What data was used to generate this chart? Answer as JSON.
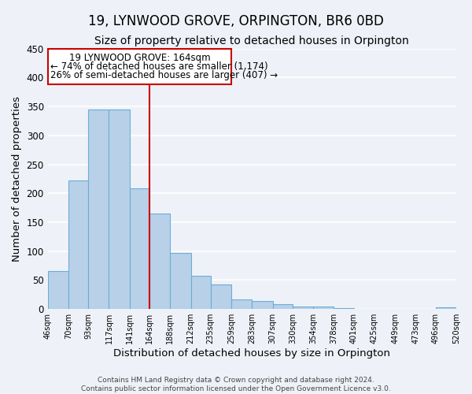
{
  "title": "19, LYNWOOD GROVE, ORPINGTON, BR6 0BD",
  "subtitle": "Size of property relative to detached houses in Orpington",
  "xlabel": "Distribution of detached houses by size in Orpington",
  "ylabel": "Number of detached properties",
  "bar_edges": [
    46,
    70,
    93,
    117,
    141,
    164,
    188,
    212,
    235,
    259,
    283,
    307,
    330,
    354,
    378,
    401,
    425,
    449,
    473,
    496,
    520
  ],
  "bar_heights": [
    65,
    222,
    345,
    345,
    209,
    165,
    97,
    57,
    43,
    16,
    14,
    8,
    5,
    5,
    2,
    0,
    0,
    0,
    0,
    3
  ],
  "bar_color": "#b8d0e8",
  "bar_edge_color": "#6aaed6",
  "vline_x": 164,
  "vline_color": "#cc0000",
  "annotation_title": "19 LYNWOOD GROVE: 164sqm",
  "annotation_line1": "← 74% of detached houses are smaller (1,174)",
  "annotation_line2": "26% of semi-detached houses are larger (407) →",
  "annotation_box_color": "#cc0000",
  "ylim": [
    0,
    450
  ],
  "yticks": [
    0,
    50,
    100,
    150,
    200,
    250,
    300,
    350,
    400,
    450
  ],
  "tick_labels": [
    "46sqm",
    "70sqm",
    "93sqm",
    "117sqm",
    "141sqm",
    "164sqm",
    "188sqm",
    "212sqm",
    "235sqm",
    "259sqm",
    "283sqm",
    "307sqm",
    "330sqm",
    "354sqm",
    "378sqm",
    "401sqm",
    "425sqm",
    "449sqm",
    "473sqm",
    "496sqm",
    "520sqm"
  ],
  "footer_line1": "Contains HM Land Registry data © Crown copyright and database right 2024.",
  "footer_line2": "Contains public sector information licensed under the Open Government Licence v3.0.",
  "bg_color": "#eef2f8",
  "grid_color": "#ffffff",
  "title_fontsize": 12,
  "subtitle_fontsize": 10,
  "axis_label_fontsize": 9.5
}
